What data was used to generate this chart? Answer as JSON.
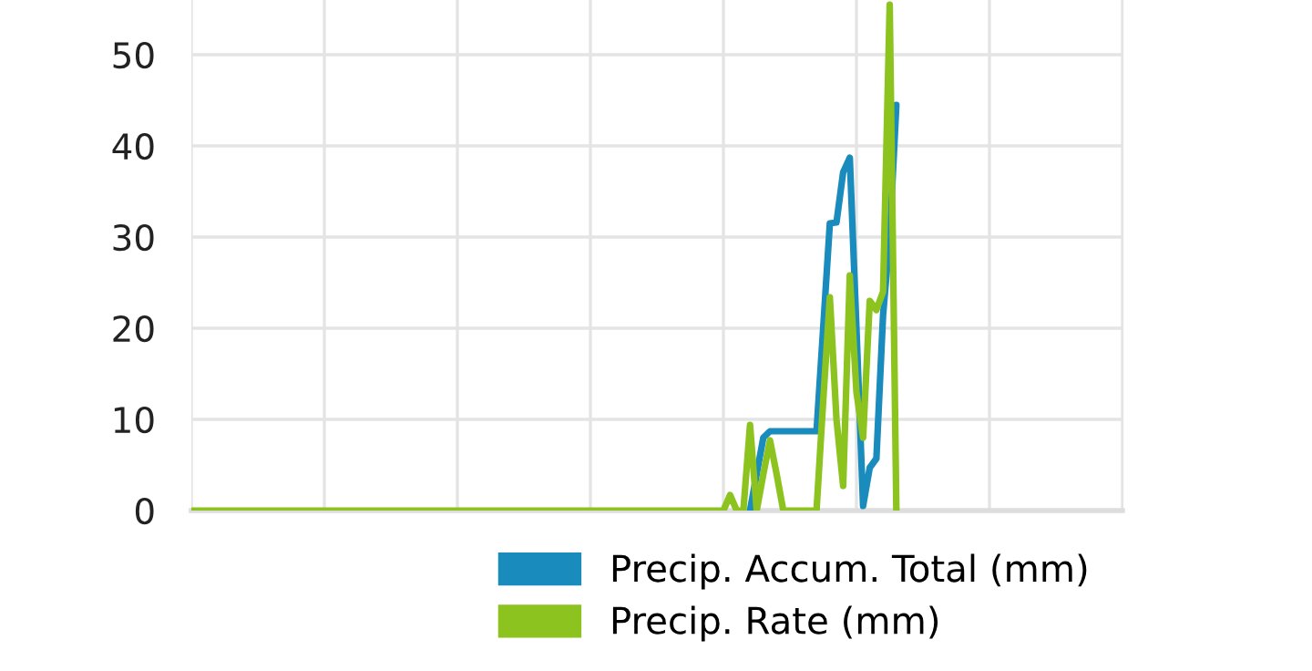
{
  "chart_data": {
    "type": "line",
    "categories": [
      null,
      null,
      null,
      null,
      null,
      null,
      null,
      null,
      null,
      null,
      null,
      null,
      null,
      null,
      null,
      null,
      null,
      null,
      null,
      null,
      null,
      null,
      null,
      null,
      null,
      null,
      null,
      null,
      null,
      null,
      null,
      null,
      null,
      null,
      null,
      null,
      null,
      null,
      null,
      null,
      null,
      null,
      null,
      null,
      null,
      null,
      null,
      null,
      null,
      null,
      null,
      null,
      null,
      null,
      null,
      null,
      null,
      null,
      null,
      null,
      null,
      null,
      null,
      null,
      null,
      null,
      null,
      null,
      null,
      null,
      null,
      null,
      null,
      null,
      null,
      null,
      null,
      null,
      null,
      null,
      null,
      null,
      null,
      null,
      null,
      null,
      null,
      null,
      null,
      null,
      null,
      null,
      null,
      null,
      null,
      null,
      null,
      null,
      null,
      null,
      null,
      null,
      null,
      null,
      null,
      null,
      null,
      null,
      null,
      null,
      null,
      null,
      null,
      null,
      null,
      null,
      null,
      null,
      null,
      null,
      null,
      null,
      null,
      null,
      null,
      null,
      null,
      null,
      null,
      null,
      null,
      null,
      null,
      null,
      null,
      null,
      null,
      null,
      null,
      null,
      null
    ],
    "series": [
      {
        "name": "Precip. Accum. Total (mm)",
        "color": "#1a8bbd",
        "values": [
          null,
          null,
          null,
          null,
          null,
          null,
          null,
          null,
          null,
          null,
          null,
          null,
          null,
          null,
          null,
          null,
          null,
          null,
          null,
          null,
          null,
          null,
          null,
          null,
          null,
          null,
          null,
          null,
          null,
          null,
          null,
          null,
          null,
          null,
          null,
          null,
          null,
          null,
          null,
          null,
          null,
          null,
          null,
          null,
          null,
          null,
          null,
          null,
          null,
          null,
          null,
          null,
          null,
          null,
          null,
          null,
          null,
          null,
          null,
          null,
          null,
          null,
          null,
          null,
          null,
          null,
          null,
          null,
          null,
          null,
          null,
          null,
          null,
          null,
          null,
          null,
          null,
          null,
          null,
          null,
          null,
          null,
          null,
          null,
          0,
          4,
          8,
          8.7,
          8.7,
          8.7,
          8.7,
          8.7,
          8.7,
          8.7,
          8.7,
          20,
          31.5,
          31.6,
          37.1,
          38.7,
          20,
          0.5,
          4.7,
          5.7,
          21.4,
          30,
          44.5,
          null,
          null,
          null,
          null,
          null,
          null,
          null,
          null,
          null,
          null,
          null,
          null,
          null,
          null,
          null,
          null,
          null,
          null,
          null,
          null,
          null,
          null,
          null,
          null,
          null,
          null,
          null,
          null,
          null,
          null,
          null,
          null,
          null,
          null
        ]
      },
      {
        "name": "Precip. Rate (mm)",
        "color": "#8cc31e",
        "values": [
          0,
          0,
          0,
          0,
          0,
          0,
          0,
          0,
          0,
          0,
          0,
          0,
          0,
          0,
          0,
          0,
          0,
          0,
          0,
          0,
          0,
          0,
          0,
          0,
          0,
          0,
          0,
          0,
          0,
          0,
          0,
          0,
          0,
          0,
          0,
          0,
          0,
          0,
          0,
          0,
          0,
          0,
          0,
          0,
          0,
          0,
          0,
          0,
          0,
          0,
          0,
          0,
          0,
          0,
          0,
          0,
          0,
          0,
          0,
          0,
          0,
          0,
          0,
          0,
          0,
          0,
          0,
          0,
          0,
          0,
          0,
          0,
          0,
          0,
          0,
          0,
          0,
          0,
          0,
          0,
          0,
          1.7,
          0,
          0,
          9.4,
          0,
          4,
          7.7,
          4,
          0,
          0,
          0,
          0,
          0,
          0,
          12,
          23.4,
          10,
          2.7,
          25.8,
          13,
          8,
          23,
          22,
          24,
          55.5,
          0,
          null,
          null,
          null,
          null,
          null,
          null,
          null,
          null,
          null,
          null,
          null,
          null,
          null,
          null,
          null,
          null,
          null,
          null,
          null,
          null,
          null,
          null,
          null,
          null,
          null,
          null,
          null,
          null,
          null,
          null,
          null,
          null,
          null,
          null
        ]
      }
    ],
    "ylim": [
      0,
      56
    ],
    "yticks": [
      0,
      10,
      20,
      30,
      40,
      50
    ],
    "grid": true,
    "legend": "bottom right",
    "tick_labels": "y"
  }
}
